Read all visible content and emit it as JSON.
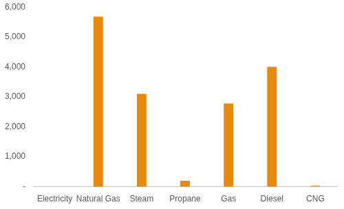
{
  "chart_data": {
    "type": "bar",
    "categories": [
      "Electricity",
      "Natural Gas",
      "Steam",
      "Propane",
      "Gas",
      "Diesel",
      "CNG"
    ],
    "values": [
      0,
      5680,
      3100,
      200,
      2780,
      4000,
      30
    ],
    "color": "#e8890c",
    "ylim": [
      0,
      6000
    ],
    "yticks": [
      {
        "value": 0,
        "label": "-"
      },
      {
        "value": 1000,
        "label": "1,000"
      },
      {
        "value": 2000,
        "label": "2,000"
      },
      {
        "value": 3000,
        "label": "3,000"
      },
      {
        "value": 4000,
        "label": "4,000"
      },
      {
        "value": 5000,
        "label": "5,000"
      },
      {
        "value": 6000,
        "label": "6,000"
      }
    ],
    "grid": false
  }
}
